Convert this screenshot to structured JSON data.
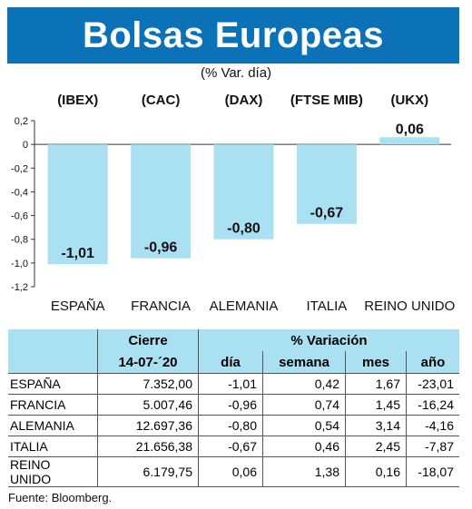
{
  "header": {
    "title": "Bolsas Europeas"
  },
  "subtitle": "(% Var. día)",
  "chart_data": {
    "type": "bar",
    "indices": [
      "(IBEX)",
      "(CAC)",
      "(DAX)",
      "(FTSE MIB)",
      "(UKX)"
    ],
    "categories": [
      "ESPAÑA",
      "FRANCIA",
      "ALEMANIA",
      "ITALIA",
      "REINO UNIDO"
    ],
    "values": [
      -1.01,
      -0.96,
      -0.8,
      -0.67,
      0.06
    ],
    "value_labels": [
      "-1,01",
      "-0,96",
      "-0,80",
      "-0,67",
      "0,06"
    ],
    "yticks": [
      0.2,
      0,
      -0.2,
      -0.4,
      -0.6,
      -0.8,
      -1.0,
      -1.2
    ],
    "ytick_labels": [
      "0,2",
      "0",
      "-0,2",
      "-0,4",
      "-0,6",
      "-0,8",
      "-1,0",
      "-1,2"
    ],
    "ylim": [
      -1.2,
      0.2
    ],
    "bar_color": "#a9e0f2",
    "grid": false
  },
  "table": {
    "group_headers": {
      "cierre": "Cierre",
      "variacion": "% Variación"
    },
    "sub_headers": [
      "14-07-´20",
      "día",
      "semana",
      "mes",
      "año"
    ],
    "rows": [
      {
        "name": "ESPAÑA",
        "cierre": "7.352,00",
        "dia": "-1,01",
        "semana": "0,42",
        "mes": "1,67",
        "anio": "-23,01"
      },
      {
        "name": "FRANCIA",
        "cierre": "5.007,46",
        "dia": "-0,96",
        "semana": "0,74",
        "mes": "1,45",
        "anio": "-16,24"
      },
      {
        "name": "ALEMANIA",
        "cierre": "12.697,36",
        "dia": "-0,80",
        "semana": "0,54",
        "mes": "3,14",
        "anio": "-4,16"
      },
      {
        "name": "ITALIA",
        "cierre": "21.656,38",
        "dia": "-0,67",
        "semana": "0,46",
        "mes": "2,45",
        "anio": "-7,87"
      },
      {
        "name": "REINO UNIDO",
        "cierre": "6.179,75",
        "dia": "0,06",
        "semana": "1,38",
        "mes": "0,16",
        "anio": "-18,07"
      }
    ]
  },
  "source": "Fuente: Bloomberg.",
  "colors": {
    "header_bg": "#0c72b8",
    "accent_light": "#a9e0f2"
  }
}
